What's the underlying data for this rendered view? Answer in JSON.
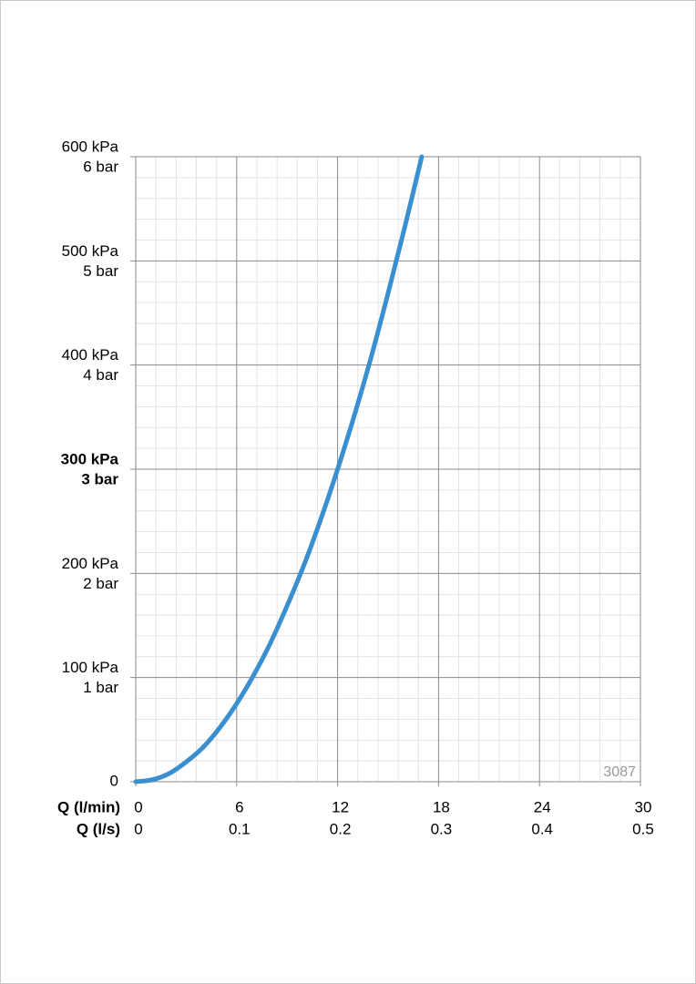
{
  "chart_data": {
    "type": "line",
    "x": [
      0,
      1,
      2,
      3,
      4,
      5,
      6,
      7,
      8,
      9,
      10,
      11,
      12,
      13,
      14,
      15,
      16,
      17
    ],
    "values": [
      0,
      2,
      8,
      19,
      33,
      52,
      75,
      102,
      133,
      169,
      208,
      252,
      300,
      352,
      408,
      469,
      533,
      600
    ],
    "color": "#3a8fd0",
    "xlabel": "Q (l/min)",
    "x2label": "Q (l/s)",
    "xlim": [
      0,
      30
    ],
    "xticks": [
      0,
      6,
      12,
      18,
      24,
      30
    ],
    "x2lim": [
      0,
      0.5
    ],
    "x2ticks": [
      0,
      0.1,
      0.2,
      0.3,
      0.4,
      0.5
    ],
    "ylim": [
      0,
      600
    ],
    "yticks": [
      0,
      {
        "value": 100,
        "label": "100 kPa",
        "label2": "1 bar"
      },
      {
        "value": 200,
        "label": "200 kPa",
        "label2": "2 bar"
      },
      {
        "value": 300,
        "label": "300 kPa",
        "label2": "3 bar"
      },
      {
        "value": 400,
        "label": "400 kPa",
        "label2": "4 bar"
      },
      {
        "value": 500,
        "label": "500 kPa",
        "label2": "5 bar"
      },
      {
        "value": 600,
        "label": "600 kPa",
        "label2": "6 bar"
      }
    ],
    "emphasized_ytick": 300,
    "grid": true,
    "minor_per_major": 5,
    "watermark": "3087"
  }
}
